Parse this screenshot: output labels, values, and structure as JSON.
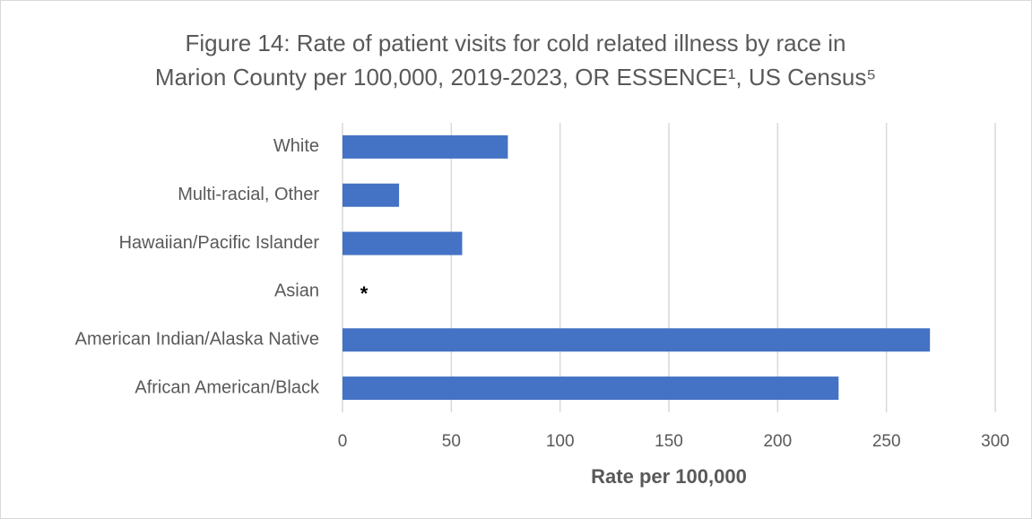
{
  "chart_data": {
    "type": "bar",
    "orientation": "horizontal",
    "title": [
      "Figure 14: Rate of patient visits for cold related illness by race in",
      "Marion County per 100,000, 2019-2023, OR ESSENCE¹, US Census⁵"
    ],
    "categories": [
      "White",
      "Multi-racial, Other",
      "Hawaiian/Pacific Islander",
      "Asian",
      "American Indian/Alaska Native",
      "African American/Black"
    ],
    "values": [
      76,
      26,
      55,
      null,
      270,
      228
    ],
    "color": "#4472c4",
    "xlim": [
      0,
      300
    ],
    "xticks": [
      0,
      50,
      100,
      150,
      200,
      250,
      300
    ],
    "x_label": "Rate per 100,000",
    "grid": true,
    "annotations": [
      {
        "text": "*",
        "category": 3
      }
    ]
  }
}
